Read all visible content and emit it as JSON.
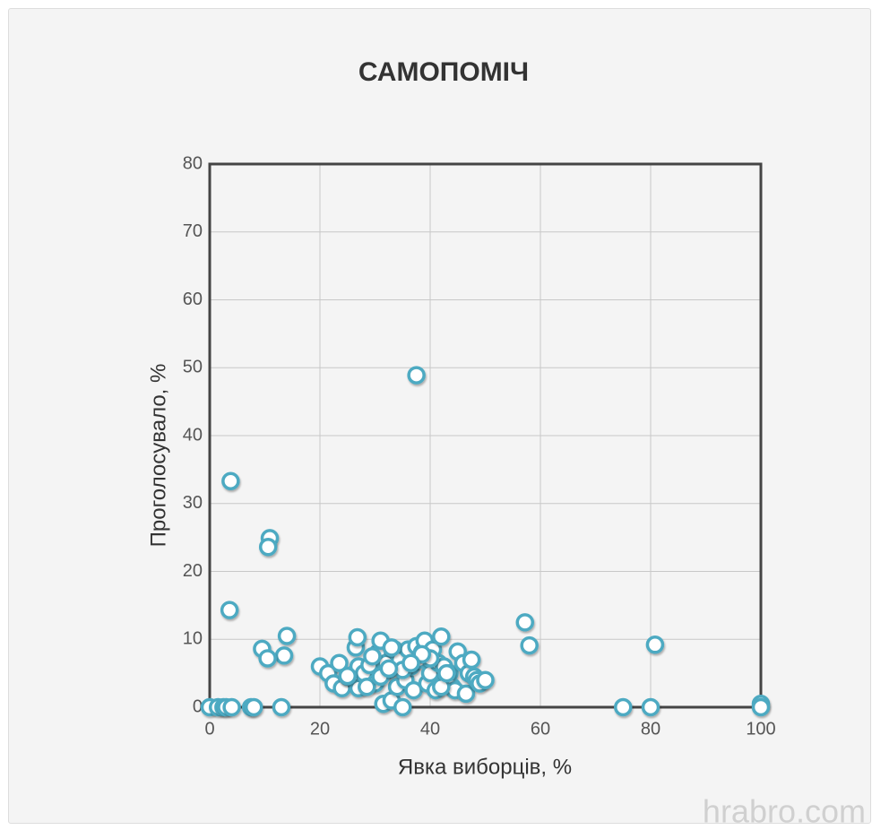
{
  "chart_data": {
    "type": "scatter",
    "title": "САМОПОМІЧ",
    "x_label": "Явка виборців, %",
    "y_label": "Проголосувало, %",
    "color": "#4eaac2",
    "x": [
      37.5,
      3.8,
      10.9,
      10.6,
      3.6,
      14,
      13.5,
      9.5,
      10.5,
      57.2,
      58,
      80.8,
      75,
      80,
      100,
      100,
      13,
      0,
      1.5,
      2.5,
      3,
      4,
      7.5,
      8,
      20,
      21.5,
      22.5,
      23.5,
      24,
      25,
      26,
      26.5,
      26.8,
      27,
      27,
      28,
      29,
      30,
      30.5,
      31,
      31.5,
      32,
      32.5,
      33,
      33.5,
      34,
      34.5,
      35,
      35.5,
      36,
      36.5,
      37,
      37.5,
      38,
      38.5,
      39,
      39.5,
      40,
      40.5,
      41,
      41.5,
      42,
      42.5,
      43,
      43.5,
      44,
      45,
      44.5,
      46,
      46.5,
      47,
      47.5,
      48,
      48.5,
      49,
      50,
      29.5,
      28.5,
      31,
      35,
      33,
      40,
      42,
      38.5,
      36.5,
      32.5,
      43,
      25
    ],
    "values": [
      48.9,
      33.3,
      24.9,
      23.6,
      14.3,
      10.5,
      7.6,
      8.6,
      7.2,
      12.5,
      9.1,
      9.2,
      0,
      0,
      0.5,
      0,
      0,
      0,
      0,
      0,
      0,
      0,
      0,
      0,
      6,
      5,
      3.5,
      6.5,
      2.8,
      4.5,
      4.8,
      8.8,
      10.3,
      6,
      2.8,
      5,
      6.2,
      3.5,
      8,
      9.8,
      0.5,
      6.5,
      5.5,
      1,
      8.5,
      3,
      7,
      0,
      4,
      8.5,
      6,
      2.5,
      9,
      7,
      8,
      9.8,
      3.5,
      5,
      8.5,
      2.5,
      6.5,
      10.4,
      6,
      4,
      5,
      3,
      8.2,
      2.5,
      6.5,
      2,
      5,
      7,
      4.5,
      4,
      3.5,
      4,
      7.5,
      3,
      4.5,
      5.5,
      8.8,
      7.2,
      3,
      7.8,
      6.5,
      5.7,
      5,
      4.6
    ],
    "xlim": [
      0,
      100
    ],
    "xticks": [
      0,
      20,
      40,
      60,
      80,
      100
    ],
    "ylim": [
      0,
      80
    ],
    "yticks": [
      0,
      10,
      20,
      30,
      40,
      50,
      60,
      70,
      80
    ],
    "grid": true
  },
  "watermark": "hrabro.com"
}
